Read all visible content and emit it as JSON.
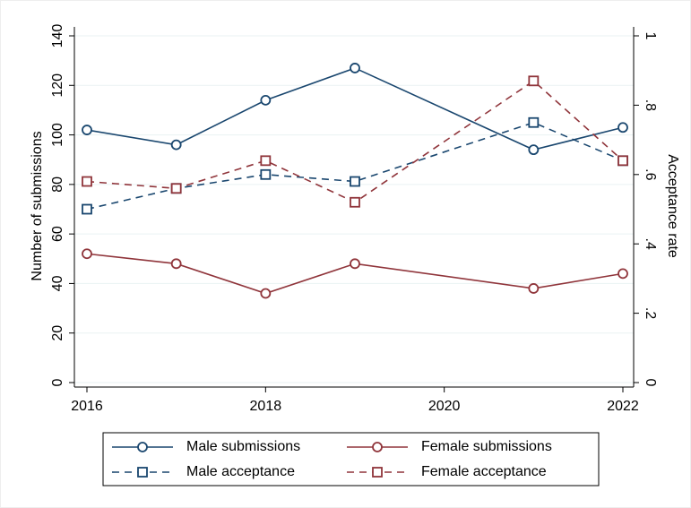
{
  "chart_data": {
    "type": "line",
    "x": [
      2016,
      2017,
      2018,
      2019,
      2021,
      2022
    ],
    "xlim": [
      2016,
      2022
    ],
    "xticks": [
      2016,
      2018,
      2020,
      2022
    ],
    "ylim": [
      0,
      140
    ],
    "yticks": [
      0,
      20,
      40,
      60,
      80,
      100,
      120,
      140
    ],
    "y2lim": [
      0,
      1
    ],
    "y2ticks": [
      0,
      {
        "value": 0.2,
        "label": ".2"
      },
      {
        "value": 0.4,
        "label": ".4"
      },
      {
        "value": 0.6,
        "label": ".6"
      },
      {
        "value": 0.8,
        "label": ".8"
      },
      1
    ],
    "ylabel": "Number of submissions",
    "y2label": "Acceptance rate",
    "grid": true,
    "legend": "bottom",
    "series": [
      {
        "name": "Male submissions",
        "color": "#1a476f",
        "marker": "circle",
        "dashed": false,
        "values": [
          102,
          96,
          114,
          127,
          94,
          103
        ]
      },
      {
        "name": "Female submissions",
        "color": "#90353b",
        "marker": "circle",
        "dashed": false,
        "values": [
          52,
          48,
          36,
          48,
          38,
          44
        ]
      },
      {
        "name": "Male acceptance",
        "color": "#1a476f",
        "marker": "square",
        "dashed": true,
        "axis": "y2",
        "values": [
          0.5,
          0.56,
          0.6,
          0.58,
          0.75,
          0.64
        ]
      },
      {
        "name": "Female acceptance",
        "color": "#90353b",
        "marker": "square",
        "dashed": true,
        "axis": "y2",
        "values": [
          0.58,
          0.56,
          0.64,
          0.52,
          0.87,
          0.64
        ]
      }
    ]
  }
}
